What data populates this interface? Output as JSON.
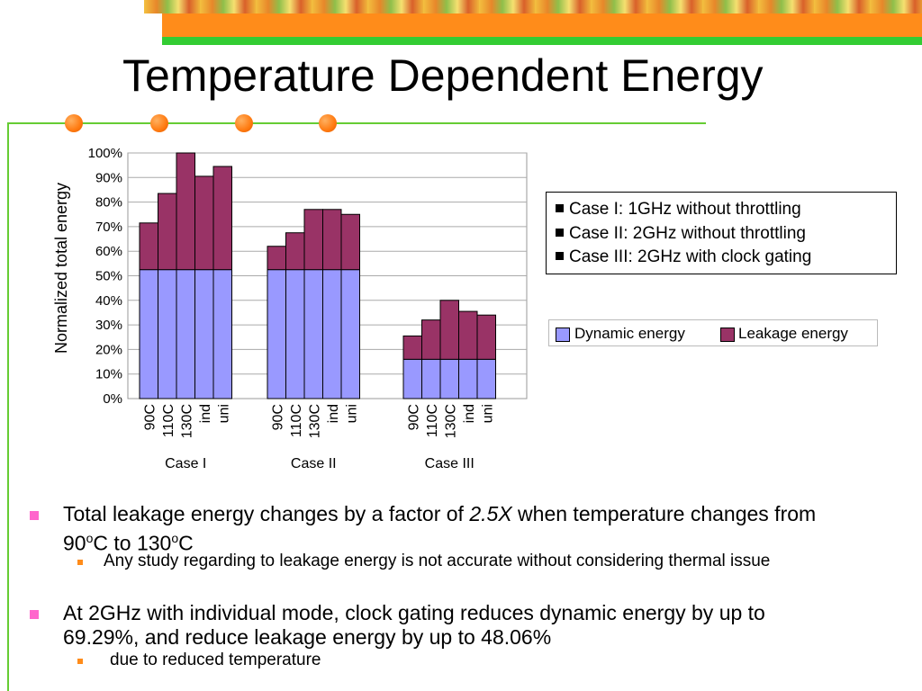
{
  "slide": {
    "title": "Temperature Dependent Energy"
  },
  "chart_data": {
    "type": "bar",
    "stacked": true,
    "ylabel": "Normalized total energy",
    "y_ticks": [
      "0%",
      "10%",
      "20%",
      "30%",
      "40%",
      "50%",
      "60%",
      "70%",
      "80%",
      "90%",
      "100%"
    ],
    "ylim": [
      0,
      100
    ],
    "grid": true,
    "groups": [
      {
        "name": "Case I",
        "categories": [
          "90C",
          "110C",
          "130C",
          "ind",
          "uni"
        ]
      },
      {
        "name": "Case II",
        "categories": [
          "90C",
          "110C",
          "130C",
          "ind",
          "uni"
        ]
      },
      {
        "name": "Case III",
        "categories": [
          "90C",
          "110C",
          "130C",
          "ind",
          "uni"
        ]
      }
    ],
    "series": [
      {
        "name": "Dynamic energy",
        "color": "#9999ff",
        "values": [
          52.5,
          52.5,
          52.5,
          52.5,
          52.5,
          52.5,
          52.5,
          52.5,
          52.5,
          52.5,
          16,
          16,
          16,
          16,
          16
        ]
      },
      {
        "name": "Leakage energy",
        "color": "#993366",
        "values": [
          19,
          31,
          47.5,
          38,
          42,
          9.5,
          15,
          24.5,
          24.5,
          22.5,
          9.5,
          16,
          24,
          19.5,
          18
        ]
      }
    ],
    "legend": "right"
  },
  "legend_cases": [
    "Case I: 1GHz without throttling",
    "Case II: 2GHz without throttling",
    "Case III: 2GHz with clock gating"
  ],
  "bullets": [
    {
      "pre": "Total leakage energy changes by a factor of ",
      "em": "2.5X",
      "post": " when temperature changes from",
      "line2_a": "90",
      "sup_a": "o",
      "line2_b": "C to 130",
      "sup_b": "o",
      "line2_c": "C",
      "sub": "Any study regarding to leakage energy is not accurate without considering thermal issue"
    },
    {
      "text_1": "At 2GHz with individual mode, clock gating reduces dynamic energy by up to",
      "text_2": "69.29%, and reduce leakage energy by up to 48.06%",
      "sub": "due to reduced temperature"
    }
  ]
}
